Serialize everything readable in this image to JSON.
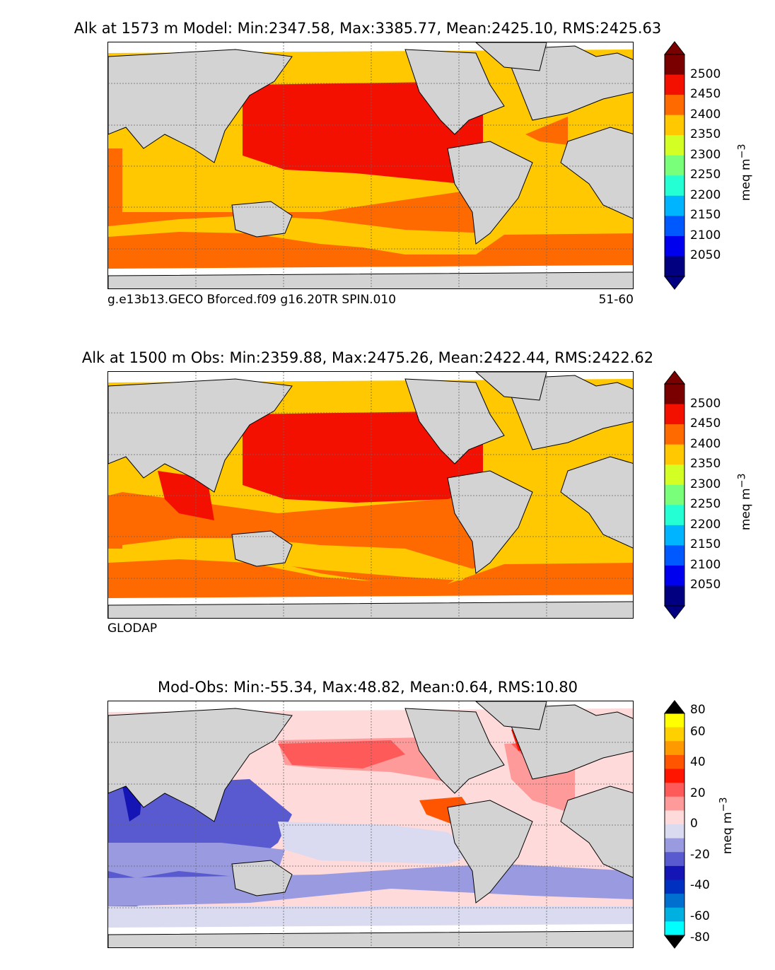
{
  "panels": [
    {
      "title": "Alk at 1573 m Model: Min:2347.58, Max:3385.77, Mean:2425.10, RMS:2425.63",
      "subtitle_left": "g.e13b13.GECO Bforced.f09 g16.20TR SPIN.010",
      "subtitle_right": "51-60",
      "colorbar": {
        "ticks": [
          "2500",
          "2450",
          "2400",
          "2350",
          "2300",
          "2250",
          "2200",
          "2150",
          "2100",
          "2050"
        ],
        "colors": [
          "#7a0000",
          "#f31000",
          "#ff6a00",
          "#ffc800",
          "#d4ff24",
          "#7aff7a",
          "#24ffd4",
          "#00b4ff",
          "#0058ff",
          "#0000ee",
          "#000080"
        ],
        "unit_base": "meq m",
        "unit_exp": "−3"
      }
    },
    {
      "title": "Alk at 1500 m Obs: Min:2359.88, Max:2475.26, Mean:2422.44, RMS:2422.62",
      "subtitle_left": "GLODAP",
      "subtitle_right": "",
      "colorbar": {
        "ticks": [
          "2500",
          "2450",
          "2400",
          "2350",
          "2300",
          "2250",
          "2200",
          "2150",
          "2100",
          "2050"
        ],
        "colors": [
          "#7a0000",
          "#f31000",
          "#ff6a00",
          "#ffc800",
          "#d4ff24",
          "#7aff7a",
          "#24ffd4",
          "#00b4ff",
          "#0058ff",
          "#0000ee",
          "#000080"
        ],
        "unit_base": "meq m",
        "unit_exp": "−3"
      }
    },
    {
      "title": "Mod-Obs: Min:-55.34, Max:48.82, Mean:0.64, RMS:10.80",
      "subtitle_left": "",
      "subtitle_right": "",
      "colorbar": {
        "ticks": [
          "80",
          "60",
          "40",
          "20",
          "0",
          "-20",
          "-40",
          "-60",
          "-80"
        ],
        "colors": [
          "#000000",
          "#ffff00",
          "#ffd000",
          "#ff9900",
          "#ff5500",
          "#ff1500",
          "#ff5a5a",
          "#ff9a9a",
          "#ffdada",
          "#dadaf0",
          "#9a9ae0",
          "#5a5ad0",
          "#1515b5",
          "#0030c0",
          "#0070d0",
          "#00b0e0",
          "#00ffff",
          "#000000"
        ],
        "unit_base": "meq m",
        "unit_exp": "−3"
      }
    }
  ]
}
